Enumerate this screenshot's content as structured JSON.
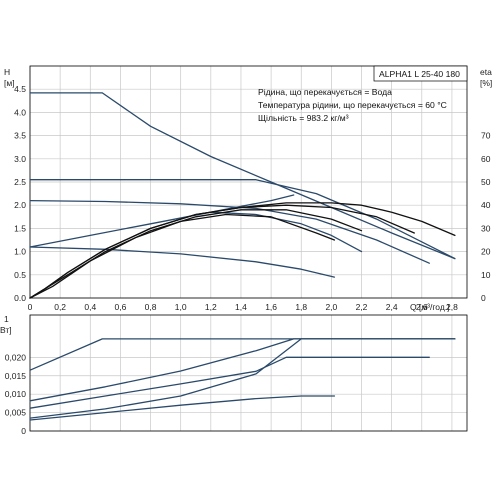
{
  "chart_data": [
    {
      "type": "line",
      "title": "ALPHA1 L 25-40 180",
      "annotations": [
        "Рідина, що перекачується = Вода",
        "Температура рідини, що перекачується = 60 °C",
        "Щільність = 983.2 кг/м³"
      ],
      "ylabel_left": "H",
      "ylabel_left_unit": "[м]",
      "ylabel_right": "eta",
      "ylabel_right_unit": "[%]",
      "xlabel": "Q [м³/год.]",
      "xlim": [
        0,
        2.9
      ],
      "ylim": [
        0,
        5
      ],
      "ylim_right": [
        0,
        100
      ],
      "x_ticks": [
        "0",
        "0,2",
        "0,4",
        "0,6",
        "0,8",
        "1,0",
        "1,2",
        "1,4",
        "1,6",
        "1,8",
        "2,0",
        "2,2",
        "2,4",
        "2,6",
        "2,8"
      ],
      "y_ticks": [
        "0.0",
        "0.5",
        "1.0",
        "1.5",
        "2.0",
        "2.5",
        "3.0",
        "3.5",
        "4.0",
        "4.5"
      ],
      "y_ticks_right": [
        "0",
        "10",
        "20",
        "30",
        "40",
        "50",
        "60",
        "70"
      ],
      "grid": true,
      "series": [
        {
          "kind": "pump",
          "color": "#2b4a6b",
          "x": [
            0,
            0.48,
            0.8,
            1.2,
            1.6,
            2.0,
            2.4,
            2.82
          ],
          "y": [
            4.42,
            4.42,
            3.7,
            3.05,
            2.5,
            1.95,
            1.4,
            0.85
          ]
        },
        {
          "kind": "pump",
          "color": "#2b4a6b",
          "x": [
            0,
            1.0,
            1.5,
            1.9,
            2.3,
            2.82
          ],
          "y": [
            2.55,
            2.55,
            2.55,
            2.25,
            1.7,
            0.85
          ]
        },
        {
          "kind": "pump",
          "color": "#2b4a6b",
          "x": [
            0,
            0.5,
            1.0,
            1.5,
            1.9,
            2.3,
            2.65
          ],
          "y": [
            2.1,
            2.08,
            2.03,
            1.93,
            1.7,
            1.25,
            0.75
          ]
        },
        {
          "kind": "pump",
          "color": "#2b4a6b",
          "x": [
            0,
            0.5,
            1.0,
            1.5,
            1.8,
            2.02
          ],
          "y": [
            1.1,
            1.05,
            0.95,
            0.78,
            0.62,
            0.45
          ]
        },
        {
          "kind": "system",
          "color": "#2b4a6b",
          "x": [
            0,
            0.4,
            0.8,
            1.2,
            1.6,
            1.75
          ],
          "y": [
            1.1,
            1.35,
            1.6,
            1.85,
            2.1,
            2.22
          ]
        },
        {
          "kind": "pump",
          "color": "#2b4a6b",
          "x": [
            1.2,
            1.5,
            1.8,
            2.0,
            2.2
          ],
          "y": [
            1.85,
            1.8,
            1.6,
            1.35,
            1.0
          ]
        },
        {
          "kind": "eta",
          "color": "#111111",
          "x": [
            0,
            0.1,
            0.25,
            0.5,
            0.8,
            1.1,
            1.4,
            1.7,
            2.0,
            2.2,
            2.4,
            2.6,
            2.82
          ],
          "y": [
            0,
            4,
            11,
            21,
            30,
            36,
            39,
            41,
            41,
            40,
            37,
            33,
            27
          ]
        },
        {
          "kind": "eta",
          "color": "#111111",
          "x": [
            0,
            0.1,
            0.25,
            0.5,
            0.8,
            1.1,
            1.4,
            1.7,
            2.0,
            2.3,
            2.55
          ],
          "y": [
            0,
            4,
            11,
            21,
            30,
            36,
            39,
            40,
            39,
            35,
            28
          ]
        },
        {
          "kind": "eta",
          "color": "#111111",
          "x": [
            0,
            0.1,
            0.25,
            0.5,
            0.8,
            1.1,
            1.4,
            1.7,
            2.0,
            2.2
          ],
          "y": [
            0,
            4,
            10,
            20,
            29,
            35,
            38,
            38,
            34,
            29
          ]
        },
        {
          "kind": "eta",
          "color": "#111111",
          "x": [
            0,
            0.15,
            0.4,
            0.7,
            1.0,
            1.3,
            1.6,
            1.9,
            2.02
          ],
          "y": [
            0,
            5,
            16,
            26,
            33,
            36,
            35,
            28,
            25
          ]
        }
      ]
    },
    {
      "type": "line",
      "ylabel": "1",
      "ylabel_line2": "Вт]",
      "xlim": [
        0,
        2.9
      ],
      "ylim": [
        0,
        0.0315
      ],
      "y_ticks": [
        "0",
        "0,005",
        "0,010",
        "0,015",
        "0,020"
      ],
      "grid": true,
      "series": [
        {
          "color": "#2b4a6b",
          "x": [
            0,
            0.48,
            2.82
          ],
          "y": [
            0.0165,
            0.025,
            0.025
          ]
        },
        {
          "color": "#2b4a6b",
          "x": [
            0,
            0.5,
            1.0,
            1.5,
            1.75,
            2.82
          ],
          "y": [
            0.0082,
            0.012,
            0.0163,
            0.0218,
            0.025,
            0.025
          ]
        },
        {
          "color": "#2b4a6b",
          "x": [
            0,
            0.5,
            1.0,
            1.5,
            1.7,
            2.65
          ],
          "y": [
            0.0062,
            0.0095,
            0.0128,
            0.0162,
            0.02,
            0.02
          ]
        },
        {
          "color": "#2b4a6b",
          "x": [
            0,
            0.5,
            1.0,
            1.5,
            1.8,
            2.82
          ],
          "y": [
            0.0035,
            0.006,
            0.0095,
            0.0155,
            0.025,
            0.025
          ]
        },
        {
          "color": "#2b4a6b",
          "x": [
            0,
            0.5,
            1.0,
            1.5,
            1.8,
            2.02
          ],
          "y": [
            0.003,
            0.005,
            0.007,
            0.0088,
            0.0095,
            0.0095
          ]
        }
      ]
    }
  ]
}
